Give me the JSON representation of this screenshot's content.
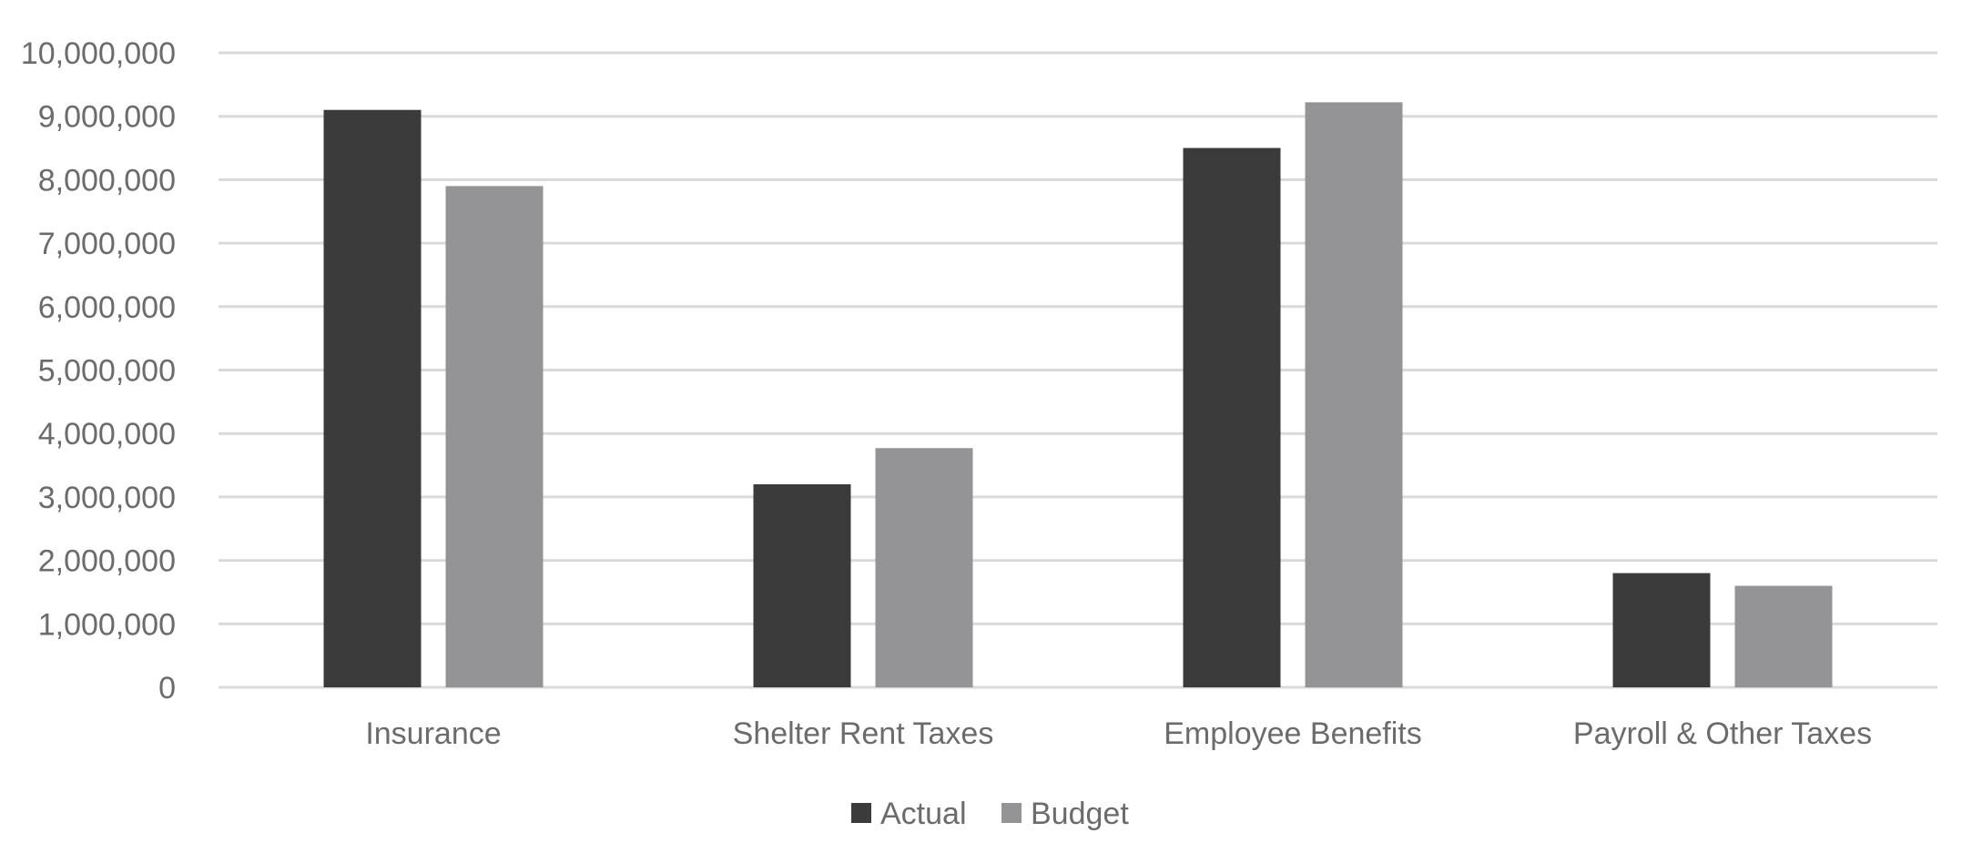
{
  "chart_data": {
    "type": "bar",
    "title": "",
    "xlabel": "",
    "ylabel": "",
    "categories": [
      "Insurance",
      "Shelter Rent Taxes",
      "Employee Benefits",
      "Payroll & Other Taxes"
    ],
    "series": [
      {
        "name": "Actual",
        "color": "#3b3b3b",
        "values": [
          9100000,
          3200000,
          8500000,
          1800000
        ]
      },
      {
        "name": "Budget",
        "color": "#949496",
        "values": [
          7900000,
          3770000,
          9220000,
          1600000
        ]
      }
    ],
    "ylim": [
      0,
      10000000
    ],
    "ytick_step": 1000000,
    "ytick_labels": [
      "0",
      "1,000,000",
      "2,000,000",
      "3,000,000",
      "4,000,000",
      "5,000,000",
      "6,000,000",
      "7,000,000",
      "8,000,000",
      "9,000,000",
      "10,000,000"
    ],
    "grid": true,
    "legend_position": "bottom-center"
  }
}
